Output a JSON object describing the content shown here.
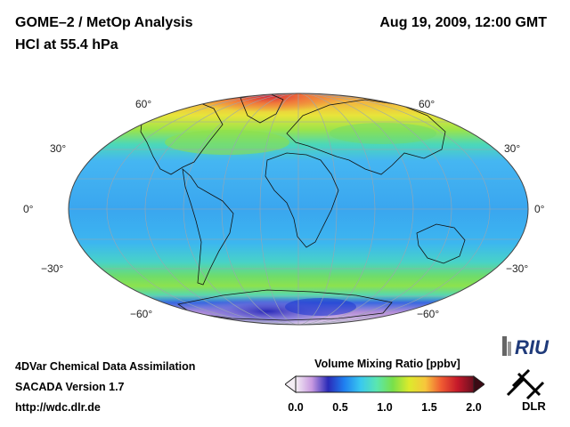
{
  "header": {
    "title_line1": "GOME–2 / MetOp Analysis",
    "title_line2": "HCl at 55.4 hPa",
    "datetime": "Aug 19, 2009, 12:00 GMT"
  },
  "map": {
    "projection": "Hammer-Aitoff",
    "latitude_labels_left": [
      "60°",
      "30°",
      "0°",
      "−30°",
      "−60°"
    ],
    "latitude_labels_right": [
      "60°",
      "30°",
      "0°",
      "−30°",
      "−60°"
    ]
  },
  "colorbar": {
    "title": "Volume Mixing Ratio [ppbv]",
    "ticks": [
      "0.0",
      "0.5",
      "1.0",
      "1.5",
      "2.0"
    ],
    "range": [
      0.0,
      2.0
    ],
    "colors": [
      "#f4eef4",
      "#c899e0",
      "#2a2ab8",
      "#1f7ff0",
      "#39c8f0",
      "#5ae6b0",
      "#79e04a",
      "#dcea2c",
      "#f7c63c",
      "#ef5a32",
      "#c5182a",
      "#6a1020"
    ]
  },
  "footer": {
    "line1": "4DVar Chemical Data Assimilation",
    "line2": "SACADA Version 1.7",
    "line3": "http://wdc.dlr.de"
  },
  "logos": {
    "riu_text": "RIU",
    "dlr_text": "DLR"
  }
}
